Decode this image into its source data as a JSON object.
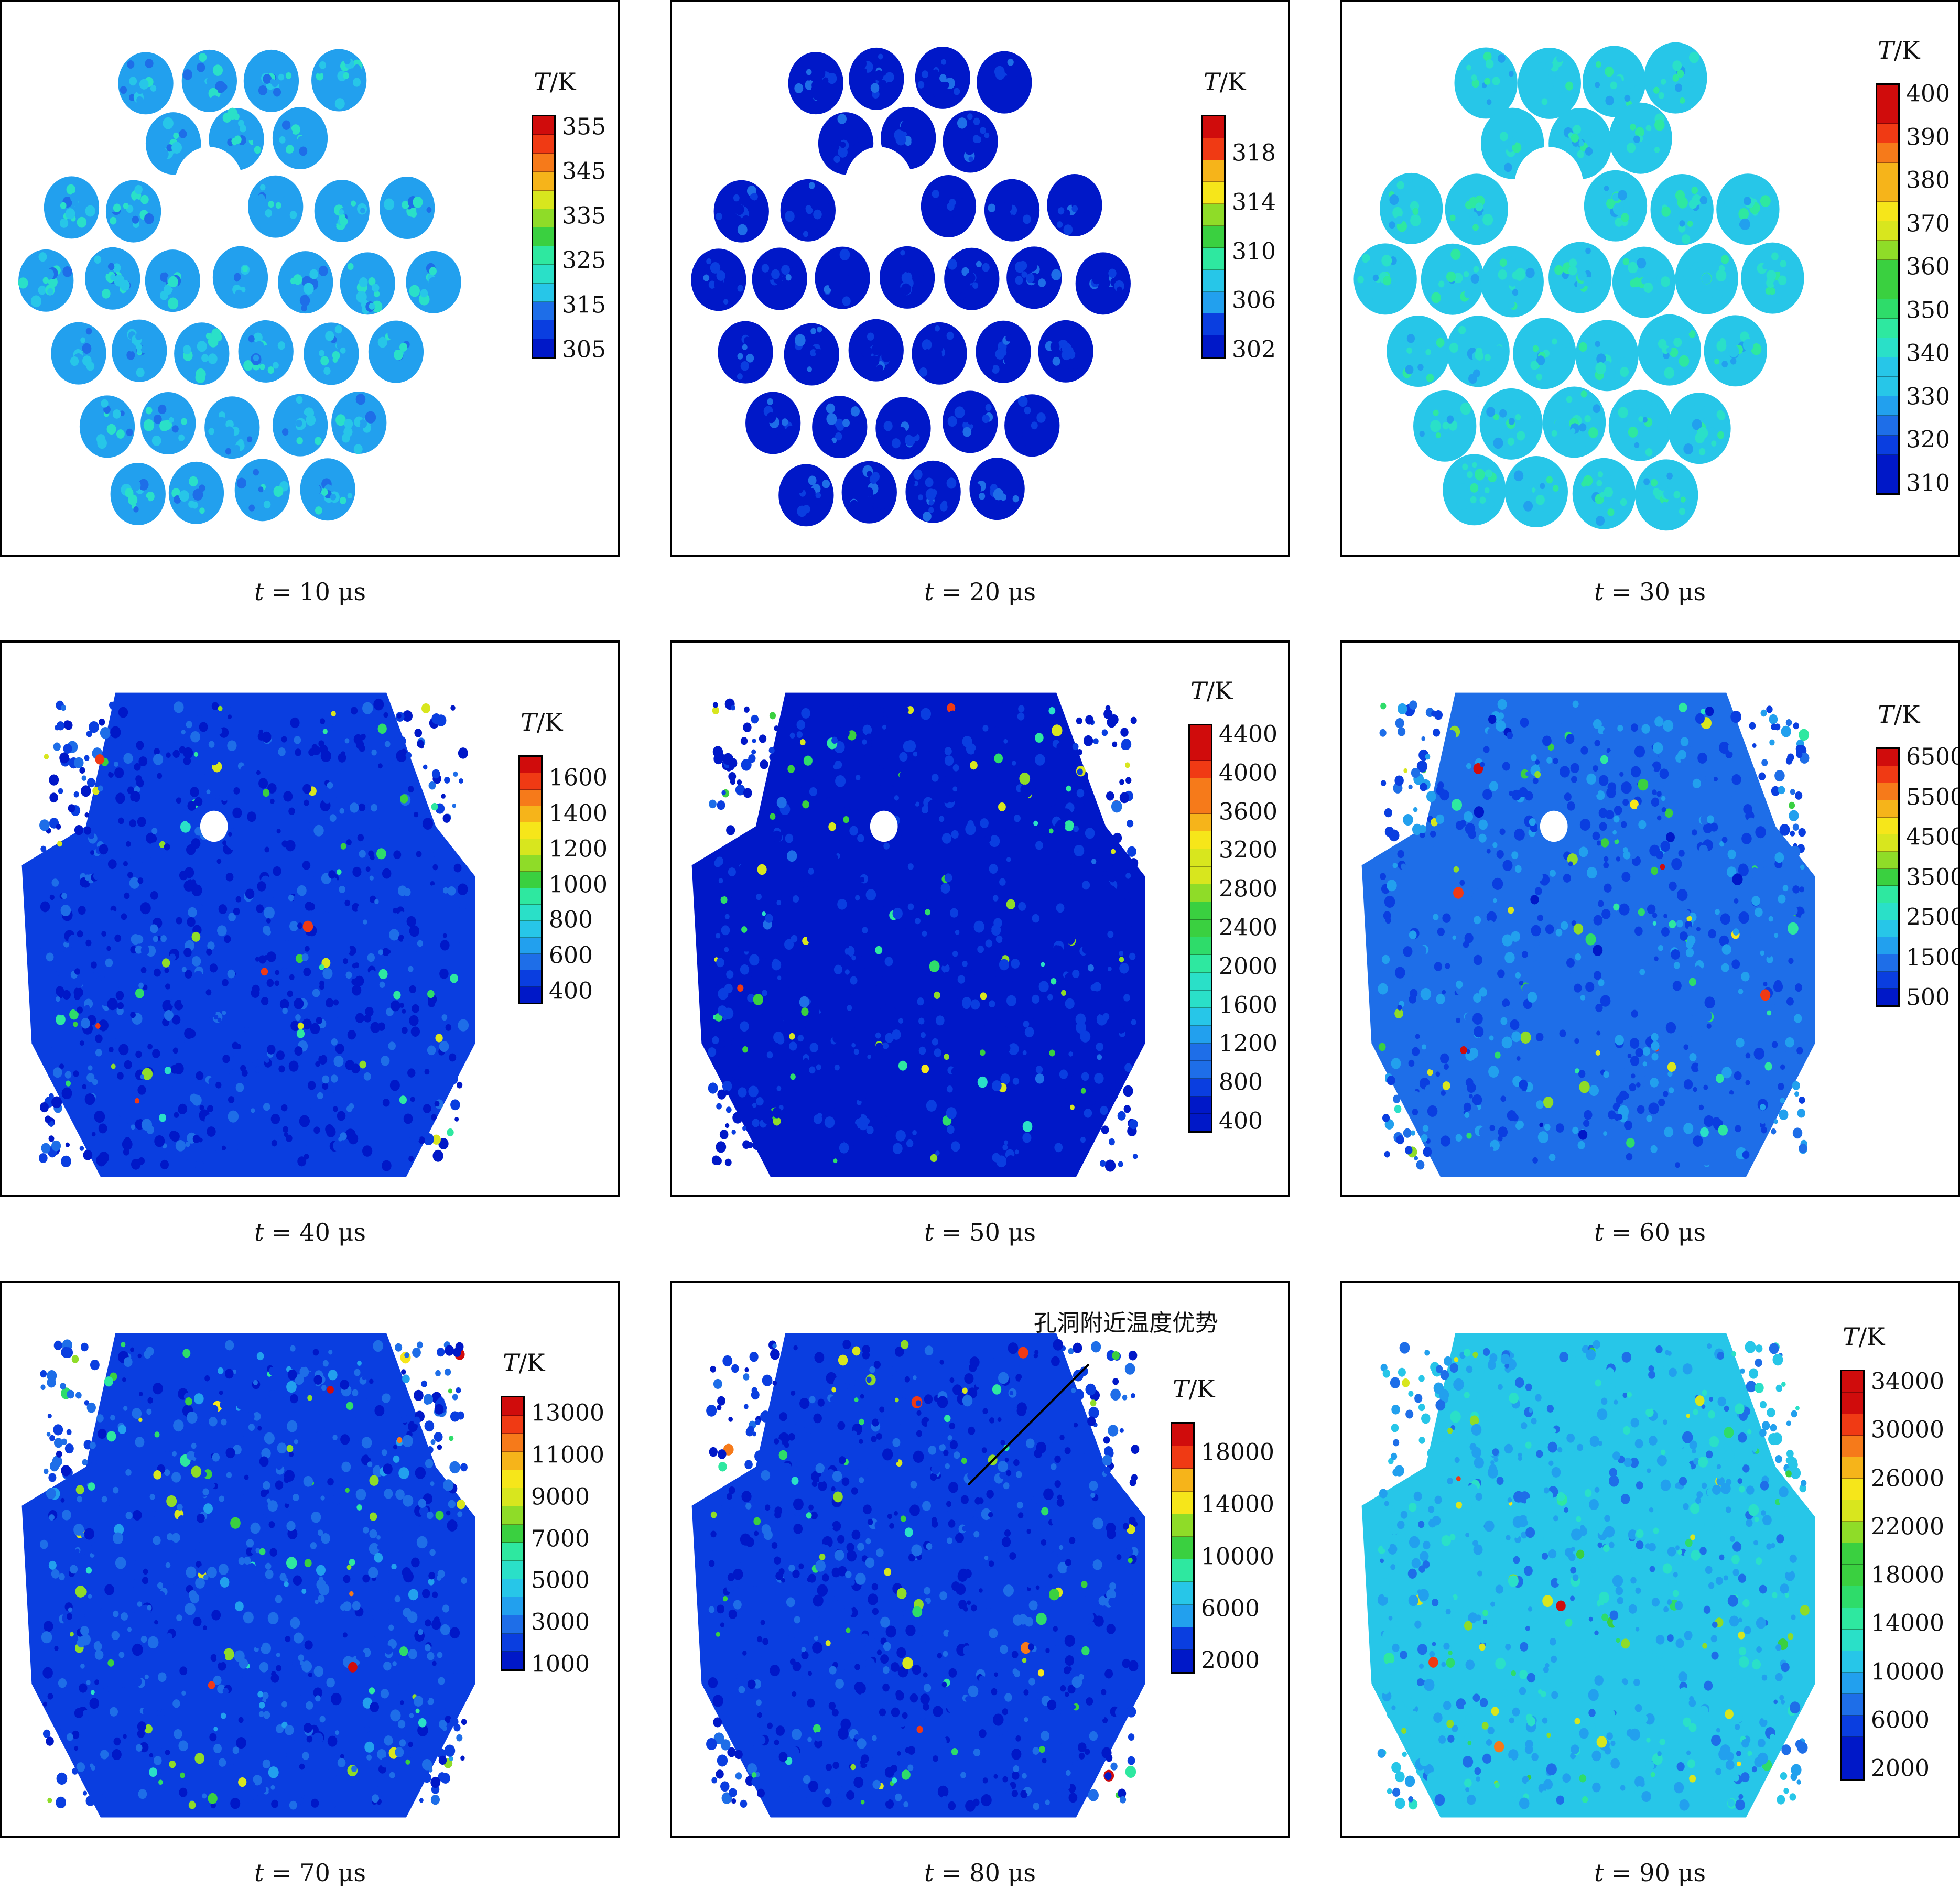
{
  "figure": {
    "colorbar_title_italic": "T",
    "colorbar_title_unit": "/K",
    "caption_var": "t",
    "caption_unit": "μs",
    "colormap": [
      "#0018c8",
      "#0a3ee0",
      "#1e6ee8",
      "#22a0ee",
      "#27c6e8",
      "#2ae0c8",
      "#2ee8a0",
      "#2edc6a",
      "#3ad040",
      "#8fdc28",
      "#d8e61e",
      "#f6e61a",
      "#f6b41a",
      "#f67a1a",
      "#f03a14",
      "#d00c0c"
    ]
  },
  "panels": [
    {
      "time": "10",
      "ticks": [
        "355",
        "345",
        "335",
        "325",
        "315",
        "305"
      ],
      "bg_level": 0.22,
      "layout": "separate",
      "hole": true
    },
    {
      "time": "20",
      "ticks": [
        "318",
        "314",
        "310",
        "306",
        "302"
      ],
      "bg_level": 0.02,
      "layout": "separate",
      "hole": true
    },
    {
      "time": "30",
      "ticks": [
        "400",
        "390",
        "380",
        "370",
        "360",
        "350",
        "340",
        "330",
        "320",
        "310"
      ],
      "bg_level": 0.28,
      "layout": "touching",
      "hole": true
    },
    {
      "time": "40",
      "ticks": [
        "1600",
        "1400",
        "1200",
        "1000",
        "800",
        "600",
        "400"
      ],
      "bg_level": 0.08,
      "layout": "merged",
      "hole": true
    },
    {
      "time": "50",
      "ticks": [
        "4400",
        "4000",
        "3600",
        "3200",
        "2800",
        "2400",
        "2000",
        "1600",
        "1200",
        "800",
        "400"
      ],
      "bg_level": 0.05,
      "layout": "merged",
      "hole": true
    },
    {
      "time": "60",
      "ticks": [
        "6500",
        "5500",
        "4500",
        "3500",
        "2500",
        "1500",
        "500"
      ],
      "bg_level": 0.15,
      "layout": "merged",
      "hole": true
    },
    {
      "time": "70",
      "ticks": [
        "13000",
        "11000",
        "9000",
        "7000",
        "5000",
        "3000",
        "1000"
      ],
      "bg_level": 0.12,
      "layout": "merged",
      "hole": false
    },
    {
      "time": "80",
      "ticks": [
        "18000",
        "14000",
        "10000",
        "6000",
        "2000"
      ],
      "bg_level": 0.08,
      "layout": "merged",
      "hole": false,
      "annotation": "孔洞附近温度优势"
    },
    {
      "time": "90",
      "ticks": [
        "34000",
        "30000",
        "26000",
        "22000",
        "18000",
        "14000",
        "10000",
        "6000",
        "2000"
      ],
      "bg_level": 0.25,
      "layout": "merged",
      "hole": false
    }
  ]
}
